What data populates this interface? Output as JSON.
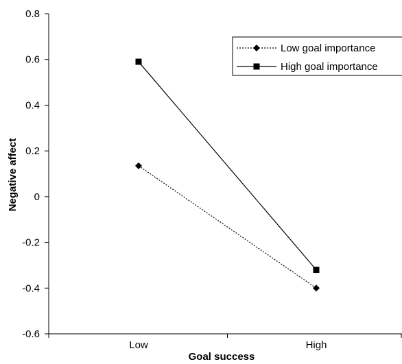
{
  "chart_data": {
    "type": "line",
    "title": "",
    "xlabel": "Goal success",
    "ylabel": "Negative affect",
    "categories": [
      "Low",
      "High"
    ],
    "ylim": [
      -0.6,
      0.8
    ],
    "yticks": [
      "0.8",
      "0.6",
      "0.4",
      "0.2",
      "0",
      "-0.2",
      "-0.4",
      "-0.6"
    ],
    "grid": false,
    "legend_position": "top-right",
    "series": [
      {
        "name": "Low goal importance",
        "values": [
          0.135,
          -0.4
        ],
        "line_style": "dotted",
        "marker": "diamond",
        "color": "#000000"
      },
      {
        "name": "High goal importance",
        "values": [
          0.59,
          -0.32
        ],
        "line_style": "solid",
        "marker": "square",
        "color": "#000000"
      }
    ]
  }
}
